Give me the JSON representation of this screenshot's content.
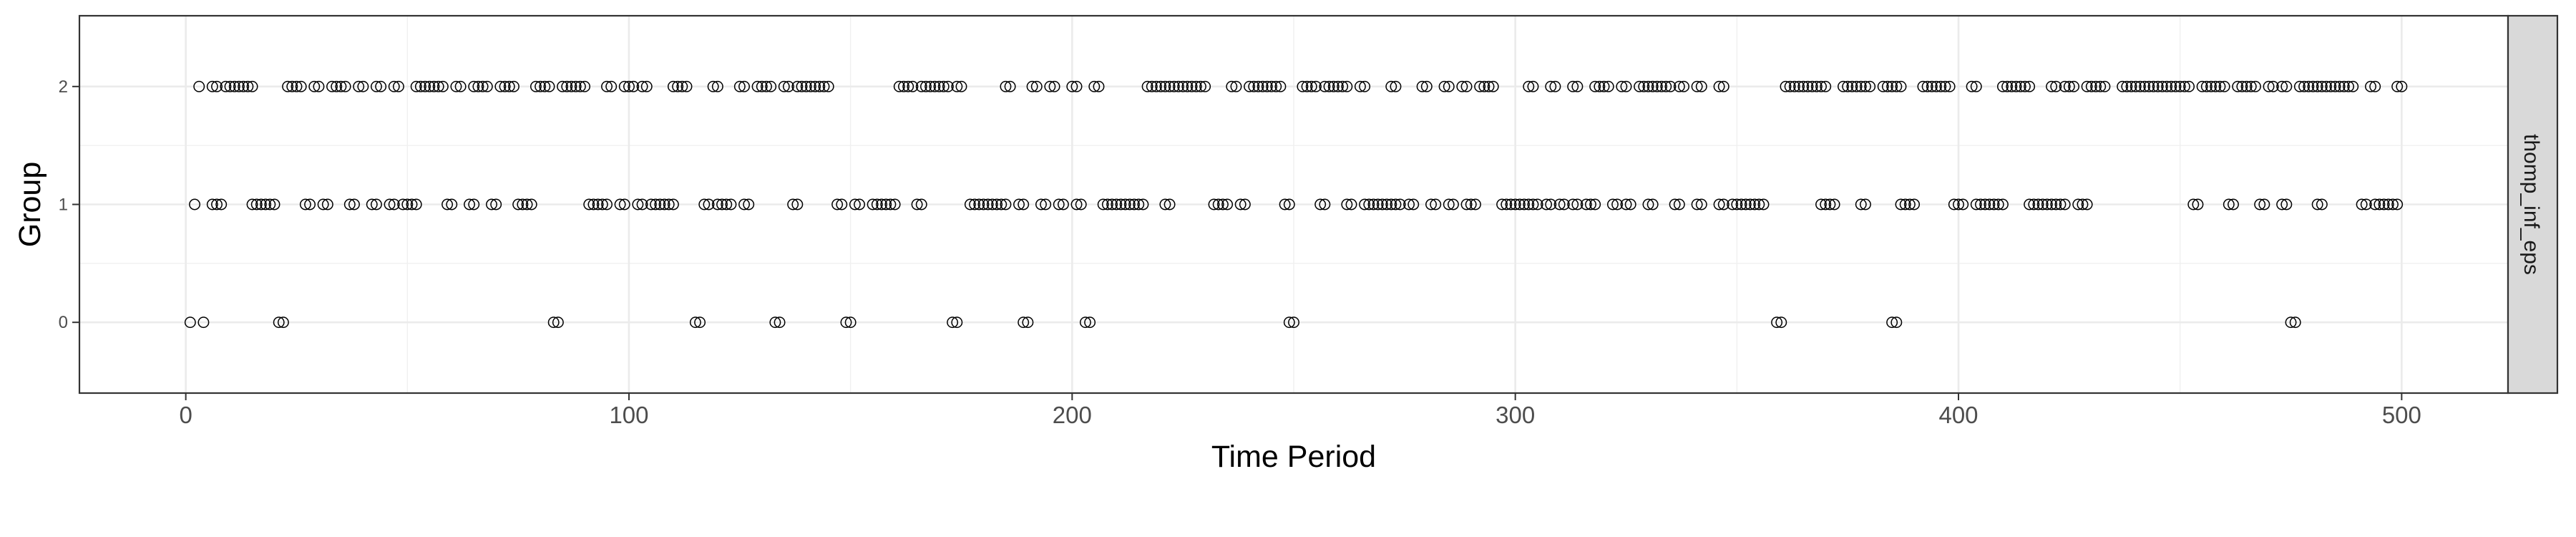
{
  "chart_data": {
    "type": "scatter",
    "facet_label": "thomp_inf_eps",
    "xlabel": "Time Period",
    "ylabel": "Group",
    "xlim": [
      -24,
      524
    ],
    "ylim": [
      -0.6,
      2.6
    ],
    "x_ticks": [
      0,
      100,
      200,
      300,
      400,
      500
    ],
    "x_tick_labels": [
      "0",
      "100",
      "200",
      "300",
      "400",
      "500"
    ],
    "y_ticks": [
      0,
      1,
      2
    ],
    "y_tick_labels": [
      "0",
      "1",
      "2"
    ],
    "grid": true,
    "marker": "open-circle",
    "series": [
      {
        "y": 0,
        "x": [
          1,
          4,
          21,
          22,
          83,
          84,
          115,
          116,
          133,
          134,
          149,
          150,
          173,
          174,
          189,
          190,
          203,
          204,
          249,
          250,
          359,
          360,
          385,
          386,
          475,
          476
        ]
      },
      {
        "y": 1,
        "x": [
          2,
          6,
          7,
          8,
          15,
          16,
          17,
          18,
          19,
          20,
          27,
          28,
          31,
          32,
          37,
          38,
          42,
          43,
          46,
          47,
          49,
          50,
          51,
          52,
          59,
          60,
          64,
          65,
          69,
          70,
          75,
          76,
          77,
          78,
          91,
          92,
          93,
          94,
          95,
          98,
          99,
          102,
          103,
          105,
          106,
          107,
          108,
          109,
          110,
          117,
          118,
          120,
          121,
          122,
          123,
          126,
          127,
          137,
          138,
          147,
          148,
          151,
          152,
          155,
          156,
          157,
          158,
          159,
          160,
          165,
          166,
          177,
          178,
          179,
          180,
          181,
          182,
          183,
          184,
          185,
          188,
          189,
          193,
          194,
          197,
          198,
          201,
          202,
          207,
          208,
          209,
          210,
          211,
          212,
          213,
          214,
          215,
          216,
          221,
          222,
          232,
          233,
          234,
          235,
          238,
          239,
          248,
          249,
          256,
          257,
          262,
          263,
          266,
          267,
          268,
          269,
          270,
          271,
          272,
          273,
          274,
          276,
          277,
          281,
          282,
          285,
          286,
          289,
          290,
          291,
          297,
          298,
          299,
          300,
          301,
          302,
          303,
          304,
          305,
          307,
          308,
          310,
          311,
          313,
          314,
          316,
          317,
          318,
          322,
          323,
          325,
          326,
          330,
          331,
          336,
          337,
          341,
          342,
          346,
          347,
          349,
          350,
          351,
          352,
          353,
          354,
          355,
          356,
          369,
          370,
          371,
          372,
          378,
          379,
          387,
          388,
          389,
          390,
          399,
          400,
          401,
          404,
          405,
          406,
          407,
          408,
          409,
          410,
          416,
          417,
          418,
          419,
          420,
          421,
          422,
          423,
          424,
          427,
          428,
          429,
          453,
          454,
          461,
          462,
          468,
          469,
          473,
          474,
          481,
          482,
          491,
          492,
          494,
          495,
          496,
          497,
          498,
          499
        ]
      },
      {
        "y": 2,
        "x": [
          3,
          6,
          7,
          9,
          10,
          11,
          12,
          13,
          14,
          15,
          23,
          24,
          25,
          26,
          29,
          30,
          33,
          34,
          35,
          36,
          39,
          40,
          43,
          44,
          47,
          48,
          52,
          53,
          54,
          55,
          56,
          57,
          58,
          61,
          62,
          65,
          66,
          67,
          68,
          71,
          72,
          73,
          74,
          79,
          80,
          81,
          82,
          85,
          86,
          87,
          88,
          89,
          90,
          95,
          96,
          99,
          100,
          101,
          103,
          104,
          110,
          111,
          112,
          113,
          119,
          120,
          125,
          126,
          129,
          130,
          131,
          132,
          135,
          136,
          138,
          139,
          140,
          141,
          142,
          143,
          144,
          145,
          161,
          162,
          163,
          164,
          166,
          167,
          168,
          169,
          170,
          171,
          172,
          174,
          175,
          185,
          186,
          191,
          192,
          195,
          196,
          200,
          201,
          205,
          206,
          217,
          218,
          219,
          220,
          221,
          222,
          223,
          224,
          225,
          226,
          227,
          228,
          229,
          230,
          236,
          237,
          240,
          241,
          242,
          243,
          244,
          245,
          246,
          247,
          252,
          253,
          254,
          255,
          257,
          258,
          259,
          260,
          261,
          262,
          265,
          266,
          272,
          273,
          279,
          280,
          284,
          285,
          288,
          289,
          292,
          293,
          294,
          295,
          303,
          304,
          308,
          309,
          313,
          314,
          318,
          319,
          320,
          321,
          324,
          325,
          328,
          329,
          330,
          331,
          332,
          333,
          334,
          335,
          337,
          338,
          341,
          342,
          346,
          347,
          361,
          362,
          363,
          364,
          365,
          366,
          367,
          368,
          369,
          370,
          374,
          375,
          376,
          377,
          378,
          379,
          380,
          383,
          384,
          385,
          386,
          387,
          392,
          393,
          394,
          395,
          396,
          397,
          398,
          403,
          404,
          410,
          411,
          412,
          413,
          414,
          415,
          416,
          421,
          422,
          424,
          425,
          426,
          429,
          430,
          431,
          432,
          433,
          437,
          438,
          439,
          440,
          441,
          442,
          443,
          444,
          445,
          446,
          447,
          448,
          449,
          450,
          451,
          452,
          455,
          456,
          457,
          458,
          459,
          460,
          463,
          464,
          465,
          466,
          467,
          470,
          471,
          473,
          474,
          477,
          478,
          479,
          480,
          481,
          482,
          483,
          484,
          485,
          486,
          487,
          488,
          489,
          493,
          494,
          499,
          500
        ]
      }
    ]
  }
}
